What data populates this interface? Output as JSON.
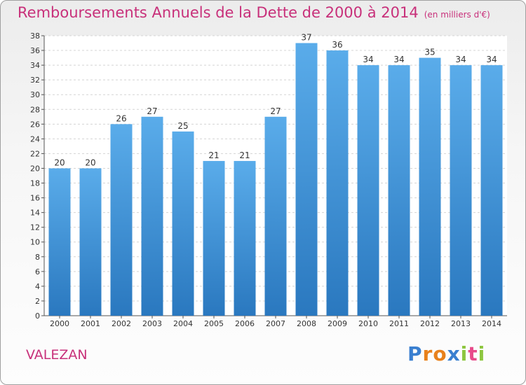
{
  "chart_data": {
    "type": "bar",
    "title": "Remboursements Annuels de la Dette de 2000 à 2014",
    "unit_note": "(en milliers d'€)",
    "categories": [
      "2000",
      "2001",
      "2002",
      "2003",
      "2004",
      "2005",
      "2006",
      "2007",
      "2008",
      "2009",
      "2010",
      "2011",
      "2012",
      "2013",
      "2014"
    ],
    "values": [
      20,
      20,
      26,
      27,
      25,
      21,
      21,
      27,
      37,
      36,
      34,
      34,
      35,
      34,
      34
    ],
    "ylim": [
      0,
      38
    ],
    "ytick_step": 2,
    "xlabel": "",
    "ylabel": "",
    "bar_color_top": "#5aacea",
    "bar_color_bottom": "#2a78bf"
  },
  "commune": "VALEZAN",
  "brand": {
    "letters": [
      "P",
      "r",
      "o",
      "x",
      "i",
      "t",
      "i"
    ],
    "colors": [
      "#3a7fd0",
      "#e8811c",
      "#e8811c",
      "#3a7fd0",
      "#8dc63f",
      "#e84b8a",
      "#8dc63f"
    ]
  }
}
